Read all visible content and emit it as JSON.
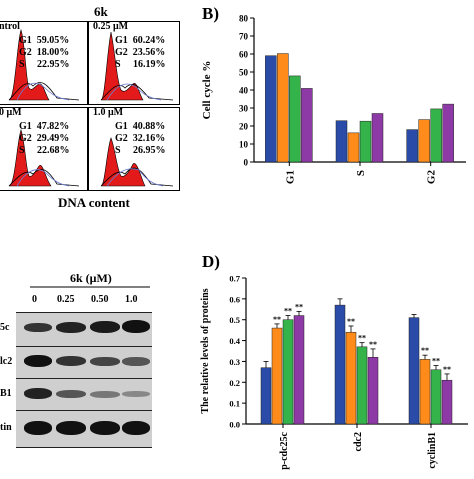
{
  "panelA": {
    "title": "6k",
    "xlabel": "DNA content",
    "histograms": [
      {
        "label": "ntrol",
        "g1": "G1  59.05%",
        "g2": "G2  18.00%",
        "s": "S     22.95%"
      },
      {
        "label": "0.25 μM",
        "g1": "G1  60.24%",
        "g2": "G2  23.56%",
        "s": "S     16.19%"
      },
      {
        "label": "0 μM",
        "g1": "G1  47.82%",
        "g2": "G2  29.49%",
        "s": "S     22.68%"
      },
      {
        "label": "1.0 μM",
        "g1": "G1  40.88%",
        "g2": "G2  32.16%",
        "s": "S     26.95%"
      }
    ]
  },
  "panelB": {
    "tag": "B)",
    "ylabel": "Cell cycle %",
    "chart_data": {
      "type": "bar",
      "categories": [
        "G1",
        "S",
        "G2"
      ],
      "series": [
        {
          "color": "#2b4ba8",
          "values": [
            59.05,
            22.95,
            18.0
          ]
        },
        {
          "color": "#ff8c1a",
          "values": [
            60.24,
            16.19,
            23.56
          ]
        },
        {
          "color": "#33b34a",
          "values": [
            47.82,
            22.68,
            29.49
          ]
        },
        {
          "color": "#8e3aa6",
          "values": [
            40.88,
            26.95,
            32.16
          ]
        }
      ],
      "ylim": [
        0,
        80
      ],
      "yticks": [
        0,
        10,
        20,
        30,
        40,
        50,
        60,
        70,
        80
      ]
    }
  },
  "panelC": {
    "title": "6k (μM)",
    "doses": [
      "0",
      "0.25",
      "0.50",
      "1.0"
    ],
    "rows": [
      "5c",
      "lc2",
      "B1",
      "tin"
    ]
  },
  "panelD": {
    "tag": "D)",
    "ylabel": "The relative levels of proteins",
    "chart_data": {
      "type": "bar",
      "categories": [
        "p-cdc25c",
        "cdc2",
        "cyclinB1"
      ],
      "series": [
        {
          "color": "#2b4ba8",
          "values": [
            0.27,
            0.57,
            0.51
          ],
          "errors": [
            0.03,
            0.03,
            0.015
          ],
          "marks": [
            "",
            "",
            ""
          ]
        },
        {
          "color": "#ff8c1a",
          "values": [
            0.46,
            0.44,
            0.31
          ],
          "errors": [
            0.02,
            0.03,
            0.02
          ],
          "marks": [
            "**",
            "**",
            "**"
          ]
        },
        {
          "color": "#33b34a",
          "values": [
            0.5,
            0.37,
            0.26
          ],
          "errors": [
            0.02,
            0.02,
            0.02
          ],
          "marks": [
            "**",
            "**",
            "**"
          ]
        },
        {
          "color": "#8e3aa6",
          "values": [
            0.52,
            0.32,
            0.21
          ],
          "errors": [
            0.02,
            0.04,
            0.03
          ],
          "marks": [
            "**",
            "**",
            "**"
          ]
        }
      ],
      "ylim": [
        0,
        0.7
      ],
      "yticks": [
        "0.0",
        "0.1",
        "0.2",
        "0.3",
        "0.4",
        "0.5",
        "0.6",
        "0.7"
      ]
    }
  }
}
